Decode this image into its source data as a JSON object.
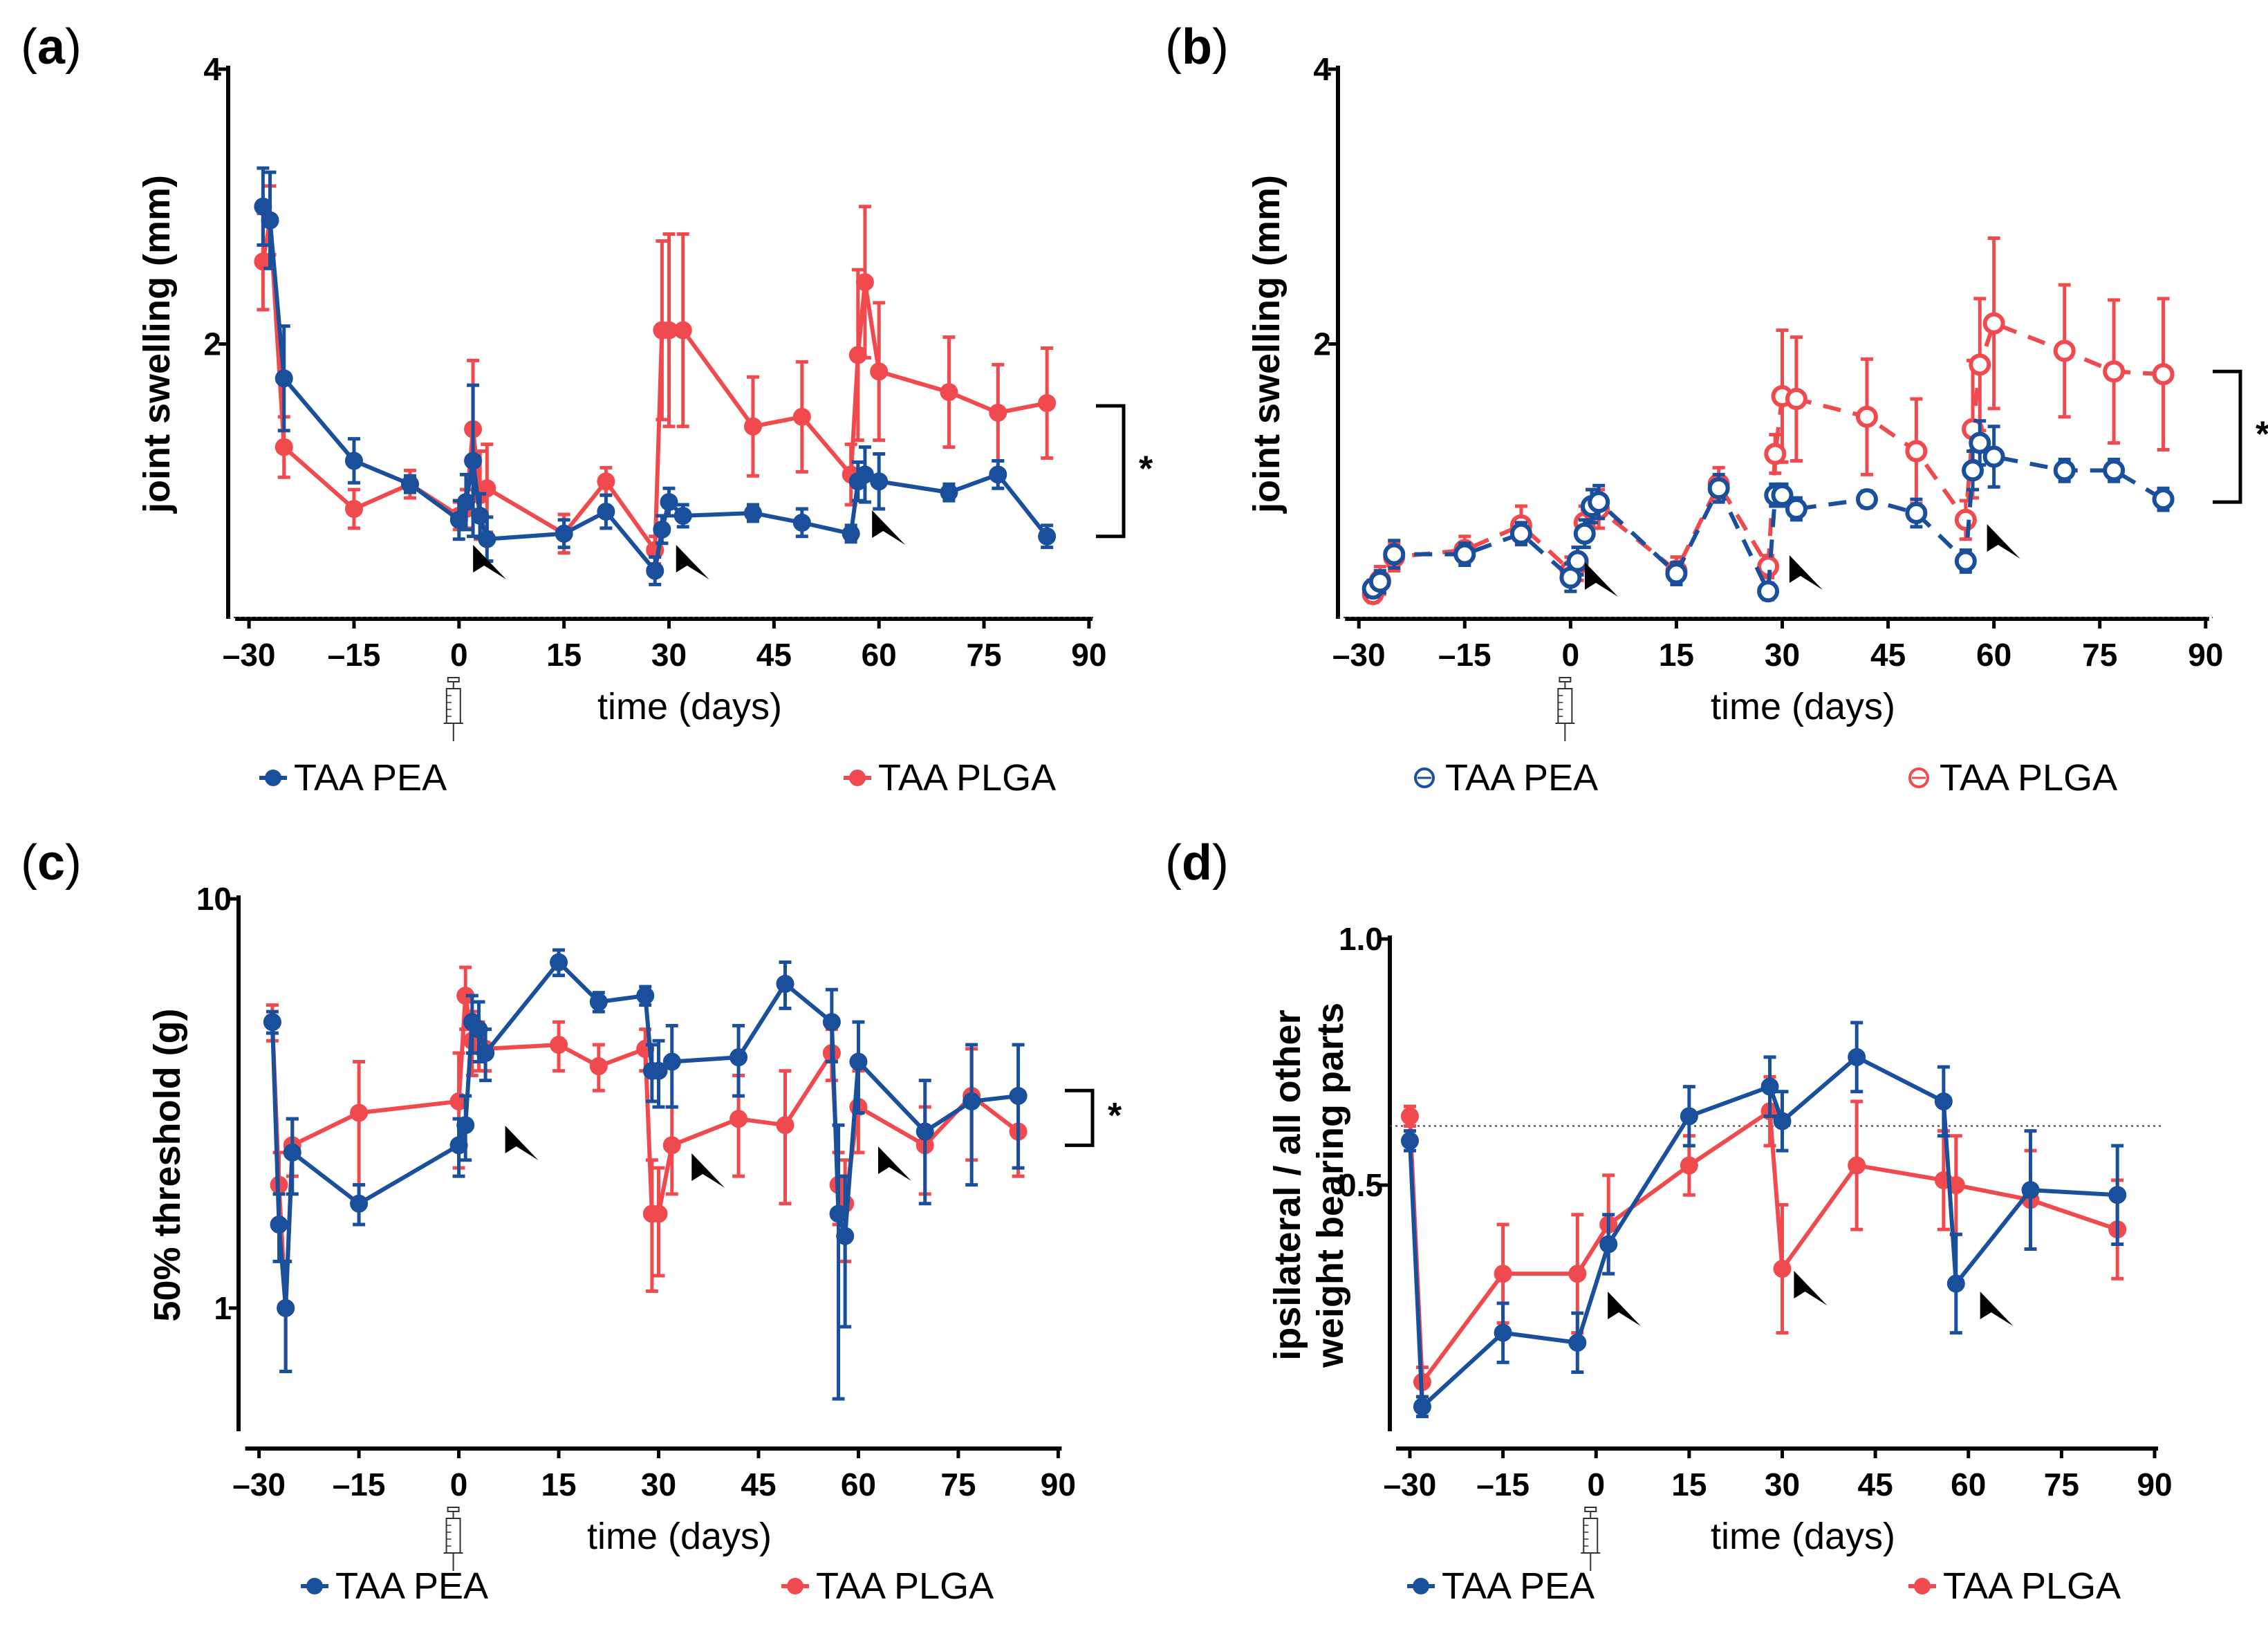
{
  "colors": {
    "pea": "#1a4f9c",
    "plga": "#f04a4f",
    "axis": "#000000"
  },
  "x_axis": {
    "label": "time (days)",
    "ticks": [
      -30,
      -15,
      0,
      15,
      30,
      45,
      60,
      75,
      90
    ],
    "tick_labels": [
      "–30",
      "–15",
      "0",
      "15",
      "30",
      "45",
      "60",
      "75",
      "90"
    ],
    "xlim": [
      -31,
      91
    ],
    "injection_icon": "syringe-icon",
    "arrowhead_icon": "arrowhead-icon"
  },
  "chart_data": [
    {
      "id": "a",
      "letter": "a",
      "type": "line",
      "marker_style": "filled",
      "line_style": "solid",
      "ylabel": "joint swelling (mm)",
      "ylim": [
        0,
        4
      ],
      "yscale": "linear",
      "yticks": [
        4,
        2
      ],
      "ytick_labels": [
        "4",
        "2"
      ],
      "baseline": 0,
      "significance": {
        "label": "*",
        "range": [
          0.6,
          1.55
        ]
      },
      "arrowheads": [
        3,
        32,
        60
      ],
      "series": [
        {
          "name": "TAA PEA",
          "x": [
            -28,
            -27,
            -25,
            -15,
            -7,
            0,
            1,
            2,
            3,
            4,
            15,
            21,
            28,
            29,
            30,
            32,
            42,
            49,
            56,
            57,
            58,
            60,
            70,
            77,
            84
          ],
          "y": [
            3.0,
            2.9,
            1.75,
            1.15,
            0.98,
            0.72,
            0.85,
            1.15,
            0.75,
            0.58,
            0.62,
            0.78,
            0.35,
            0.65,
            0.85,
            0.75,
            0.77,
            0.7,
            0.62,
            1.0,
            1.05,
            1.0,
            0.92,
            1.05,
            0.6
          ],
          "err": [
            0.28,
            0.35,
            0.38,
            0.16,
            0.06,
            0.14,
            0.2,
            0.55,
            0.16,
            0.16,
            0.1,
            0.12,
            0.1,
            0.1,
            0.1,
            0.08,
            0.06,
            0.1,
            0.06,
            0.14,
            0.2,
            0.2,
            0.06,
            0.1,
            0.08
          ]
        },
        {
          "name": "TAA PLGA",
          "x": [
            -28,
            -27,
            -25,
            -15,
            -7,
            0,
            1,
            2,
            3,
            4,
            15,
            21,
            28,
            29,
            30,
            32,
            42,
            49,
            56,
            57,
            58,
            60,
            70,
            77,
            84
          ],
          "y": [
            2.6,
            2.9,
            1.25,
            0.8,
            0.98,
            0.75,
            0.8,
            1.38,
            0.9,
            0.95,
            0.62,
            1.0,
            0.5,
            2.1,
            2.1,
            2.1,
            1.4,
            1.47,
            1.05,
            1.92,
            2.45,
            1.8,
            1.65,
            1.5,
            1.57
          ],
          "err": [
            0.35,
            0.25,
            0.22,
            0.14,
            0.1,
            0.1,
            0.14,
            0.5,
            0.32,
            0.32,
            0.14,
            0.1,
            0.1,
            0.65,
            0.7,
            0.7,
            0.36,
            0.4,
            0.22,
            0.62,
            0.55,
            0.5,
            0.4,
            0.35,
            0.4
          ]
        }
      ],
      "legend": [
        {
          "name": "TAA PEA",
          "marker": "filled"
        },
        {
          "name": "TAA PLGA",
          "marker": "filled"
        }
      ]
    },
    {
      "id": "b",
      "letter": "b",
      "type": "line",
      "marker_style": "open",
      "line_style": "dashed",
      "ylabel": "joint swelling (mm)",
      "ylim": [
        0,
        4
      ],
      "yscale": "linear",
      "yticks": [
        4,
        2
      ],
      "ytick_labels": [
        "4",
        "2"
      ],
      "baseline": 0,
      "significance": {
        "label": "*",
        "range": [
          0.85,
          1.8
        ]
      },
      "arrowheads": [
        3,
        32,
        60
      ],
      "series": [
        {
          "name": "TAA PEA",
          "x": [
            -28,
            -27,
            -25,
            -15,
            -7,
            0,
            1,
            2,
            3,
            4,
            15,
            21,
            28,
            29,
            30,
            32,
            42,
            49,
            56,
            57,
            58,
            60,
            70,
            77,
            84
          ],
          "y": [
            0.22,
            0.27,
            0.47,
            0.47,
            0.62,
            0.3,
            0.42,
            0.62,
            0.82,
            0.85,
            0.33,
            0.95,
            0.2,
            0.9,
            0.9,
            0.8,
            0.87,
            0.77,
            0.42,
            1.08,
            1.28,
            1.18,
            1.08,
            1.08,
            0.87
          ],
          "err": [
            0.06,
            0.08,
            0.1,
            0.08,
            0.08,
            0.1,
            0.1,
            0.1,
            0.12,
            0.12,
            0.08,
            0.1,
            0.06,
            0.08,
            0.08,
            0.08,
            0.06,
            0.1,
            0.08,
            0.14,
            0.16,
            0.22,
            0.08,
            0.08,
            0.08
          ]
        },
        {
          "name": "TAA PLGA",
          "x": [
            -28,
            -27,
            -25,
            -15,
            -7,
            0,
            1,
            2,
            3,
            4,
            15,
            21,
            28,
            29,
            30,
            32,
            42,
            49,
            56,
            57,
            58,
            60,
            70,
            77,
            84
          ],
          "y": [
            0.18,
            0.28,
            0.45,
            0.5,
            0.68,
            0.35,
            0.4,
            0.7,
            0.8,
            0.8,
            0.35,
            0.98,
            0.38,
            1.2,
            1.62,
            1.6,
            1.47,
            1.22,
            0.72,
            1.38,
            1.85,
            2.15,
            1.95,
            1.8,
            1.78
          ],
          "err": [
            0.06,
            0.1,
            0.1,
            0.1,
            0.14,
            0.1,
            0.12,
            0.12,
            0.14,
            0.14,
            0.1,
            0.12,
            0.08,
            0.14,
            0.48,
            0.45,
            0.42,
            0.38,
            0.14,
            0.5,
            0.48,
            0.62,
            0.48,
            0.52,
            0.55
          ]
        }
      ],
      "legend": [
        {
          "name": "TAA PEA",
          "marker": "open"
        },
        {
          "name": "TAA PLGA",
          "marker": "open"
        }
      ]
    },
    {
      "id": "c",
      "letter": "c",
      "type": "line",
      "marker_style": "filled",
      "line_style": "solid",
      "ylabel": "50% threshold (g)",
      "ylim": [
        0.5,
        10
      ],
      "yscale": "log",
      "yticks": [
        10,
        1
      ],
      "ytick_labels": [
        "10",
        "1"
      ],
      "baseline": null,
      "significance": {
        "label": "*",
        "range": [
          2.5,
          3.4
        ]
      },
      "arrowheads": [
        8,
        36,
        64
      ],
      "series": [
        {
          "name": "TAA PEA",
          "x": [
            -28,
            -27,
            -26,
            -25,
            -15,
            0,
            1,
            2,
            3,
            4,
            15,
            21,
            28,
            29,
            30,
            32,
            42,
            49,
            56,
            57,
            58,
            60,
            70,
            77,
            84
          ],
          "y": [
            5.0,
            1.6,
            1.0,
            2.4,
            1.8,
            2.5,
            2.8,
            5.0,
            4.8,
            4.2,
            7.0,
            5.6,
            5.8,
            3.8,
            3.8,
            4.0,
            4.1,
            6.2,
            5.0,
            1.7,
            1.5,
            4.0,
            2.7,
            3.2,
            3.3
          ],
          "err": [
            0.3,
            0.3,
            0.3,
            0.5,
            0.2,
            0.4,
            0.5,
            0.8,
            0.8,
            0.6,
            0.5,
            0.3,
            0.3,
            0.6,
            0.7,
            0.9,
            0.8,
            0.8,
            1.0,
            1.1,
            0.6,
            1.0,
            0.9,
            1.2,
            1.1
          ]
        },
        {
          "name": "TAA PLGA",
          "x": [
            -28,
            -27,
            -26,
            -25,
            -15,
            0,
            1,
            2,
            3,
            4,
            15,
            21,
            28,
            29,
            30,
            32,
            42,
            49,
            56,
            57,
            58,
            60,
            70,
            77,
            84
          ],
          "y": [
            5.0,
            2.0,
            1.0,
            2.5,
            3.0,
            3.2,
            5.8,
            4.5,
            4.4,
            4.3,
            4.4,
            3.9,
            4.3,
            1.7,
            1.7,
            2.5,
            2.9,
            2.8,
            4.2,
            2.0,
            1.8,
            3.1,
            2.5,
            3.3,
            2.7
          ],
          "err": [
            0.5,
            0.4,
            0.3,
            0.4,
            1.0,
            1.0,
            1.0,
            0.8,
            0.6,
            0.5,
            0.6,
            0.5,
            0.5,
            0.6,
            0.5,
            0.6,
            0.8,
            1.0,
            0.6,
            0.4,
            0.5,
            0.7,
            0.6,
            1.0,
            0.6
          ]
        }
      ],
      "legend": [
        {
          "name": "TAA PEA",
          "marker": "filled"
        },
        {
          "name": "TAA PLGA",
          "marker": "filled"
        }
      ]
    },
    {
      "id": "d",
      "letter": "d",
      "type": "line",
      "marker_style": "filled",
      "line_style": "solid",
      "ylabel": "ipsilateral / all other\nweight bearing parts",
      "ylim": [
        0,
        1.0
      ],
      "yscale": "linear",
      "yticks": [
        1.0,
        0.5
      ],
      "ytick_labels": [
        "1.0",
        "0.5"
      ],
      "baseline": 0.62,
      "significance": null,
      "arrowheads": [
        3,
        33,
        63
      ],
      "series": [
        {
          "name": "TAA PEA",
          "x": [
            -30,
            -28,
            -15,
            -3,
            2,
            15,
            28,
            30,
            42,
            56,
            58,
            70,
            84
          ],
          "y": [
            0.59,
            0.05,
            0.2,
            0.18,
            0.38,
            0.64,
            0.7,
            0.63,
            0.76,
            0.67,
            0.3,
            0.49,
            0.48
          ],
          "err": [
            0.02,
            0.02,
            0.06,
            0.06,
            0.06,
            0.06,
            0.06,
            0.06,
            0.07,
            0.07,
            0.1,
            0.12,
            0.1
          ]
        },
        {
          "name": "TAA PLGA",
          "x": [
            -30,
            -28,
            -15,
            -3,
            2,
            15,
            28,
            30,
            42,
            56,
            58,
            70,
            84
          ],
          "y": [
            0.64,
            0.1,
            0.32,
            0.32,
            0.42,
            0.54,
            0.65,
            0.33,
            0.54,
            0.51,
            0.5,
            0.47,
            0.41
          ],
          "err": [
            0.02,
            0.03,
            0.1,
            0.12,
            0.1,
            0.06,
            0.07,
            0.13,
            0.13,
            0.1,
            0.1,
            0.1,
            0.1
          ]
        }
      ],
      "legend": [
        {
          "name": "TAA PEA",
          "marker": "filled"
        },
        {
          "name": "TAA PLGA",
          "marker": "filled"
        }
      ]
    }
  ]
}
